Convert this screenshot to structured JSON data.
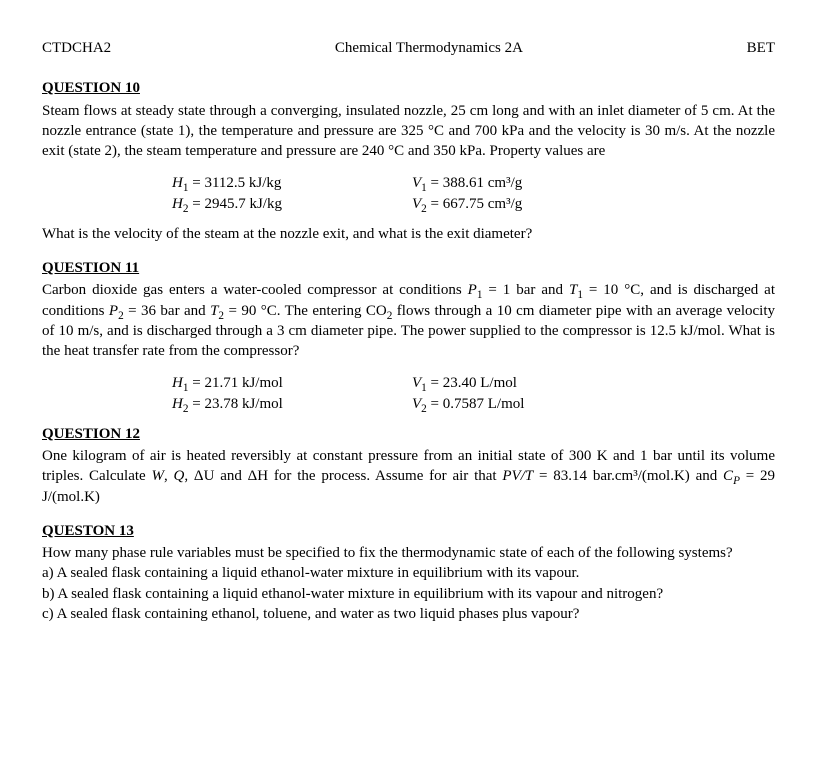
{
  "header": {
    "left": "CTDCHA2",
    "center": "Chemical Thermodynamics 2A",
    "right": "BET"
  },
  "q10": {
    "title": "QUESTION 10",
    "para": "Steam flows at steady state through a converging, insulated nozzle, 25 cm long and with an inlet diameter of 5 cm. At the nozzle entrance (state 1), the temperature and pressure are 325 °C and 700 kPa and the velocity is 30 m/s. At the nozzle exit (state 2), the steam temperature and pressure are 240 °C and 350 kPa. Property values are",
    "H1": "3112.5 kJ/kg",
    "H2": "2945.7 kJ/kg",
    "V1": "388.61 cm³/g",
    "V2": "667.75 cm³/g",
    "ask": "What is the velocity of the steam at the nozzle exit, and what is the exit diameter?"
  },
  "q11": {
    "title": "QUESTION 11",
    "para_pre": "Carbon dioxide gas enters a water-cooled compressor at conditions ",
    "p1": "P",
    "p1sub": "1",
    "eq1": " = 1 bar and ",
    "t1": "T",
    "t1sub": "1",
    "eq2": " = 10 °C, and is discharged at conditions ",
    "p2": "P",
    "p2sub": "2",
    "eq3": " = 36 bar and ",
    "t2": "T",
    "t2sub": "2",
    "eq4": " = 90 °C. The entering CO",
    "co2sub": "2",
    "para_post": " flows through a 10 cm diameter pipe with an average velocity of 10 m/s, and is discharged through a 3 cm diameter pipe. The power supplied to the compressor is 12.5 kJ/mol. What is the heat transfer rate from the compressor?",
    "H1": "21.71 kJ/mol",
    "H2": "23.78 kJ/mol",
    "V1": "23.40 L/mol",
    "V2": "0.7587 L/mol"
  },
  "q12": {
    "title": "QUESTION 12",
    "para_a": "One kilogram of air is heated reversibly at constant pressure from an initial state of 300 K and 1 bar until its volume triples. Calculate ",
    "W": "W",
    "Q": "Q",
    "dU": "ΔU",
    "dH": "ΔH",
    "para_b": " for the process. Assume for air that ",
    "pvt": "PV/T",
    "para_c": " = 83.14 bar.cm³/(mol.K) and ",
    "cp": "C",
    "cpsub": "P",
    "para_d": " = 29 J/(mol.K)"
  },
  "q13": {
    "title": "QUESTON 13",
    "para": "How many phase rule variables must be specified to fix the thermodynamic state of each of the following systems?",
    "a": "a)  A sealed flask containing a liquid ethanol-water mixture in equilibrium with its vapour.",
    "b": "b)  A sealed flask containing a liquid ethanol-water mixture in equilibrium with its vapour and nitrogen?",
    "c": "c)  A sealed flask containing ethanol, toluene, and water as two liquid phases plus vapour?"
  }
}
